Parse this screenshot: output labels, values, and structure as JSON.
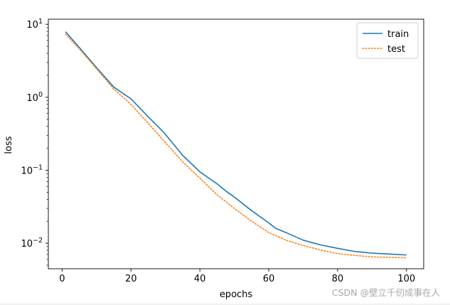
{
  "chart_data": {
    "type": "line",
    "title": "",
    "xlabel": "epochs",
    "ylabel": "loss",
    "xlim": [
      -4,
      105
    ],
    "ylim_log10": [
      -2.35,
      1.07
    ],
    "y_scale": "log",
    "x_ticks": [
      0,
      20,
      40,
      60,
      80,
      100
    ],
    "y_ticks": [
      {
        "exp": 1,
        "label_base": "10",
        "label_exp": "1"
      },
      {
        "exp": 0,
        "label_base": "10",
        "label_exp": "0"
      },
      {
        "exp": -1,
        "label_base": "10",
        "label_exp": "−1"
      },
      {
        "exp": -2,
        "label_base": "10",
        "label_exp": "−2"
      }
    ],
    "legend_position": "top-right",
    "grid": false,
    "series": [
      {
        "name": "train",
        "color": "#1f77b4",
        "style": "solid",
        "x": [
          1,
          5,
          10,
          15,
          20,
          25,
          29,
          30,
          35,
          40,
          45,
          48,
          50,
          55,
          60,
          62,
          65,
          70,
          75,
          80,
          85,
          90,
          95,
          100
        ],
        "y": [
          7.9,
          4.8,
          2.55,
          1.38,
          0.95,
          0.54,
          0.35,
          0.31,
          0.16,
          0.095,
          0.065,
          0.05,
          0.043,
          0.028,
          0.019,
          0.016,
          0.014,
          0.011,
          0.0095,
          0.0085,
          0.0077,
          0.0073,
          0.0071,
          0.0069
        ]
      },
      {
        "name": "test",
        "color": "#ff7f0e",
        "style": "dotted",
        "x": [
          1,
          5,
          10,
          15,
          20,
          25,
          30,
          35,
          40,
          45,
          50,
          55,
          60,
          65,
          70,
          75,
          80,
          85,
          90,
          95,
          100
        ],
        "y": [
          7.3,
          4.6,
          2.45,
          1.3,
          0.8,
          0.44,
          0.24,
          0.13,
          0.078,
          0.046,
          0.03,
          0.02,
          0.014,
          0.011,
          0.0093,
          0.0081,
          0.0072,
          0.0068,
          0.0065,
          0.0064,
          0.0063
        ]
      }
    ]
  },
  "watermark": "CSDN @壁立千仞成事在人"
}
